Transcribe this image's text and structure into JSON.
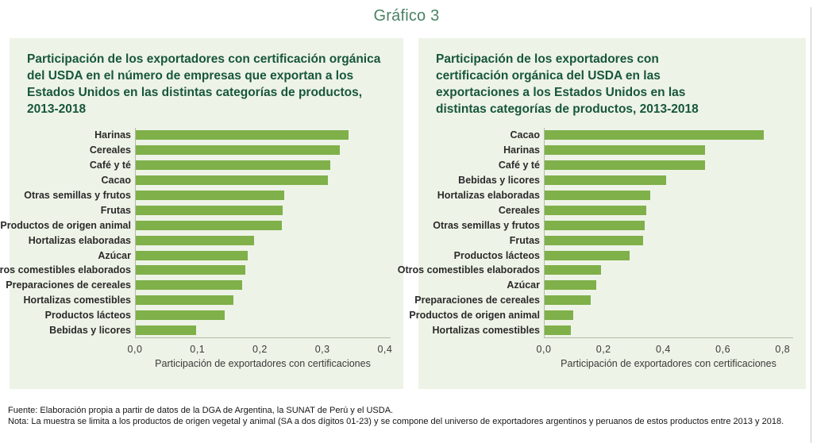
{
  "figure_label": "Gráfico 3",
  "colors": {
    "bar": "#7fb04a",
    "panel_bg": "#eef3e7",
    "title_green": "#17573a",
    "figure_label_green": "#4a8265",
    "axis_line": "#b3bca9"
  },
  "footer": {
    "fuente": "Fuente: Elaboración propia a partir de datos de la DGA de Argentina, la SUNAT de Perú y el USDA.",
    "nota": "Nota: La muestra se limita a los productos de origen vegetal y animal (SA a dos dígitos 01-23) y se compone del universo de exportadores argentinos y peruanos de estos productos entre 2013 y 2018."
  },
  "chart_data": [
    {
      "type": "bar",
      "orientation": "horizontal",
      "title": "Participación de los exportadores con certificación orgánica del USDA en el número de empresas que exportan a los Estados Unidos en las distintas categorías de productos, 2013-2018",
      "xlabel": "Participación de exportadores con certificaciones",
      "xlim": [
        0,
        0.409
      ],
      "grid": false,
      "legend": null,
      "tick_values": [
        0.0,
        0.1,
        0.2,
        0.3,
        0.4
      ],
      "tick_labels": [
        "0,0",
        "0,1",
        "0,2",
        "0,3",
        "0,4"
      ],
      "categories": [
        "Harinas",
        "Cereales",
        "Café y té",
        "Cacao",
        "Otras semillas y frutos",
        "Frutas",
        "Productos de origen animal",
        "Hortalizas elaboradas",
        "Azúcar",
        "Otros comestibles elaborados",
        "Preparaciones de cereales",
        "Hortalizas comestibles",
        "Productos lácteos",
        "Bebidas y licores"
      ],
      "values": [
        0.341,
        0.328,
        0.312,
        0.308,
        0.238,
        0.236,
        0.234,
        0.19,
        0.179,
        0.176,
        0.171,
        0.157,
        0.143,
        0.097
      ]
    },
    {
      "type": "bar",
      "orientation": "horizontal",
      "title": "Participación de los exportadores con certificación orgánica del USDA en las exportaciones a los Estados Unidos en las distintas categorías de productos, 2013-2018",
      "xlabel": "Participación de exportadores con certificaciones",
      "xlim": [
        0,
        0.835
      ],
      "grid": false,
      "legend": null,
      "tick_values": [
        0.0,
        0.2,
        0.4,
        0.6,
        0.8
      ],
      "tick_labels": [
        "0,0",
        "0,2",
        "0,4",
        "0,6",
        "0,8"
      ],
      "categories": [
        "Cacao",
        "Harinas",
        "Café y té",
        "Bebidas y licores",
        "Hortalizas elaboradas",
        "Cereales",
        "Otras semillas y frutos",
        "Frutas",
        "Productos lácteos",
        "Otros comestibles elaborados",
        "Azúcar",
        "Preparaciones de cereales",
        "Productos de origen animal",
        "Hortalizas comestibles"
      ],
      "values": [
        0.735,
        0.54,
        0.54,
        0.407,
        0.354,
        0.341,
        0.336,
        0.33,
        0.285,
        0.189,
        0.173,
        0.155,
        0.097,
        0.088
      ]
    }
  ]
}
